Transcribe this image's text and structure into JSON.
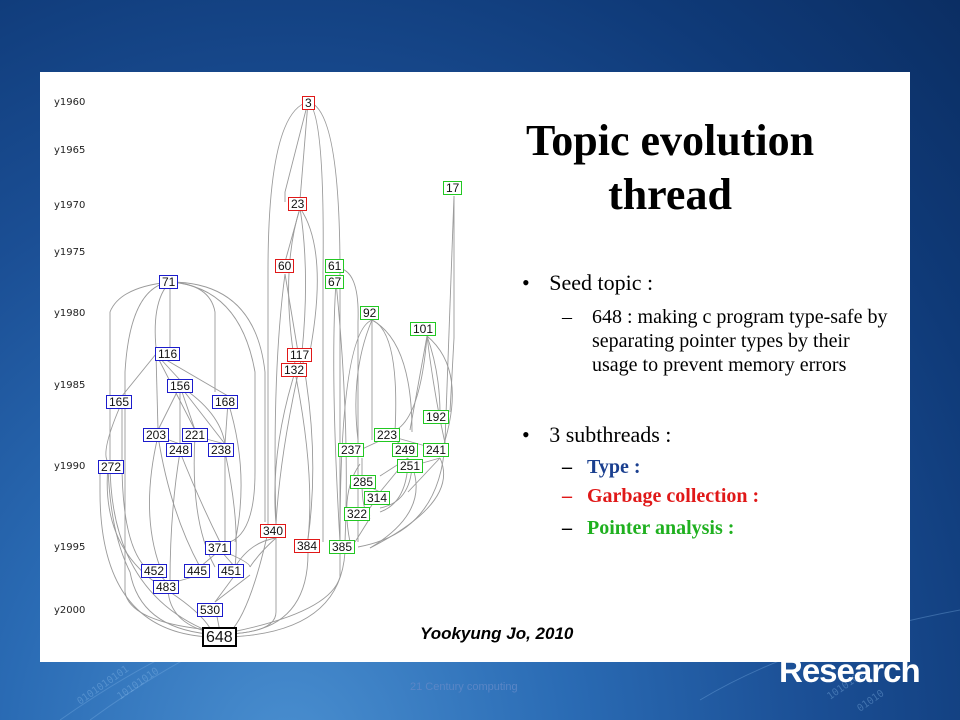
{
  "slide": {
    "title_line1": "Topic evolution",
    "title_line2": "thread",
    "bullets": [
      {
        "label": "Seed topic :",
        "sub": {
          "dash": "–",
          "text": "648 : making c program type-safe by separating pointer types by their usage to prevent memory errors"
        }
      },
      {
        "label": "3 subthreads :",
        "subs": [
          {
            "dash": "–",
            "text": "Type :",
            "color": "#1a3f8f"
          },
          {
            "dash": "–",
            "text": "Garbage collection :",
            "color": "#e01818"
          },
          {
            "dash": "–",
            "text": "Pointer analysis :",
            "color": "#1fb01f"
          }
        ]
      }
    ],
    "author": "Yookyung Jo, 2010"
  },
  "diagram": {
    "years": [
      "y1960",
      "y1965",
      "y1970",
      "y1975",
      "y1980",
      "y1985",
      "y1990",
      "y1995",
      "y2000"
    ],
    "colors": {
      "type": "#1c1ccc",
      "garbage": "#e01818",
      "pointer": "#22c822",
      "edge": "#9a9a9a"
    },
    "nodes": {
      "blue": [
        "71",
        "116",
        "156",
        "165",
        "168",
        "203",
        "221",
        "248",
        "238",
        "272",
        "371",
        "452",
        "445",
        "451",
        "483",
        "530"
      ],
      "red": [
        "3",
        "23",
        "60",
        "117",
        "132",
        "340",
        "384"
      ],
      "green": [
        "17",
        "61",
        "67",
        "92",
        "101",
        "192",
        "223",
        "237",
        "249",
        "241",
        "251",
        "285",
        "314",
        "322",
        "385"
      ],
      "root": "648"
    }
  },
  "footer": {
    "text": "21 Century computing",
    "brand": "Research"
  }
}
